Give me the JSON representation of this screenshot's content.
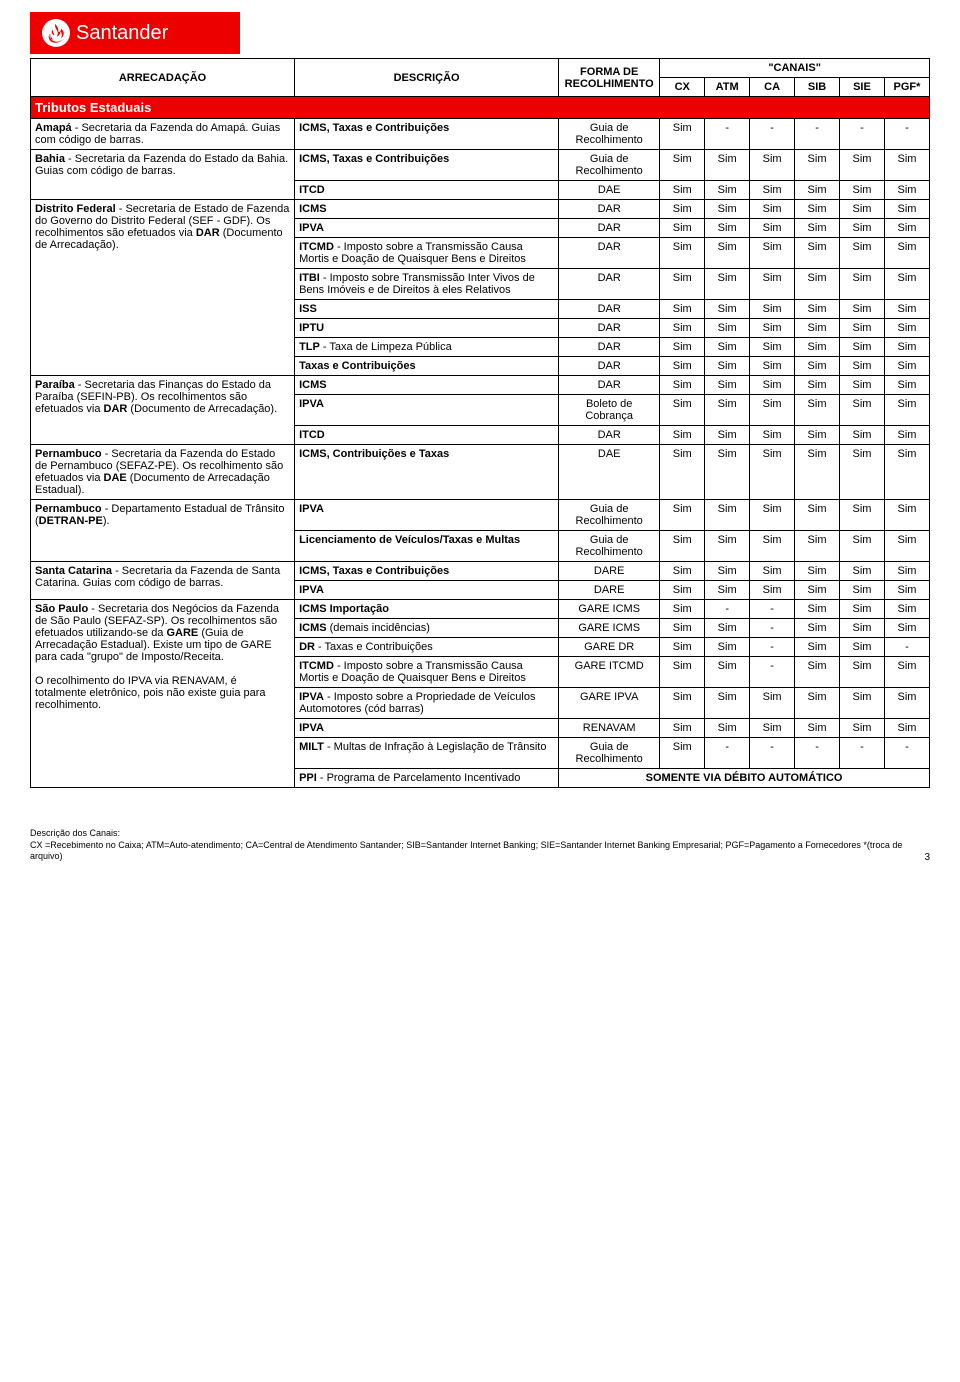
{
  "brand": {
    "name": "Santander",
    "color": "#ec0000"
  },
  "header": {
    "col_arrecadacao": "ARRECADAÇÃO",
    "col_descricao": "DESCRIÇÃO",
    "col_forma": "FORMA DE RECOLHIMENTO",
    "canais_title": "\"CANAIS\"",
    "channels": [
      "CX",
      "ATM",
      "CA",
      "SIB",
      "SIE",
      "PGF*"
    ]
  },
  "section_title": "Tributos Estaduais",
  "groups": [
    {
      "arr_html": "<span class='b'>Amapá</span> - Secretaria da Fazenda do Amapá. Guias com código de barras.",
      "rows": [
        {
          "desc": "<span class='b'>ICMS, Taxas e Contribuições</span>",
          "forma": "Guia de Recolhimento",
          "vals": [
            "Sim",
            "-",
            "-",
            "-",
            "-",
            "-"
          ]
        }
      ]
    },
    {
      "arr_html": "<span class='b'>Bahia</span> - Secretaria da Fazenda do Estado da Bahia. Guias com código de barras.",
      "rows": [
        {
          "desc": "<span class='b'>ICMS, Taxas e Contribuições</span>",
          "forma": "Guia de Recolhimento",
          "vals": [
            "Sim",
            "Sim",
            "Sim",
            "Sim",
            "Sim",
            "Sim"
          ]
        },
        {
          "desc": "<span class='b'>ITCD</span>",
          "forma": "DAE",
          "vals": [
            "Sim",
            "Sim",
            "Sim",
            "Sim",
            "Sim",
            "Sim"
          ]
        }
      ]
    },
    {
      "arr_html": "<span class='b'>Distrito Federal</span> - Secretaria de Estado de Fazenda do Governo do Distrito Federal (SEF - GDF). Os recolhimentos são efetuados via <span class='b'>DAR</span> (Documento de Arrecadação).",
      "rows": [
        {
          "desc": "<span class='b'>ICMS</span>",
          "forma": "DAR",
          "vals": [
            "Sim",
            "Sim",
            "Sim",
            "Sim",
            "Sim",
            "Sim"
          ]
        },
        {
          "desc": "<span class='b'>IPVA</span>",
          "forma": "DAR",
          "vals": [
            "Sim",
            "Sim",
            "Sim",
            "Sim",
            "Sim",
            "Sim"
          ]
        },
        {
          "desc": "<span class='b'>ITCMD</span> - Imposto sobre a Transmissão Causa Mortis e Doação de Quaisquer Bens e Direitos",
          "forma": "DAR",
          "vals": [
            "Sim",
            "Sim",
            "Sim",
            "Sim",
            "Sim",
            "Sim"
          ]
        },
        {
          "desc": "<span class='b'>ITBI</span> - Imposto sobre Transmissão Inter Vivos de Bens Imóveis e de Direitos à eles Relativos",
          "forma": "DAR",
          "vals": [
            "Sim",
            "Sim",
            "Sim",
            "Sim",
            "Sim",
            "Sim"
          ]
        },
        {
          "desc": "<span class='b'>ISS</span>",
          "forma": "DAR",
          "vals": [
            "Sim",
            "Sim",
            "Sim",
            "Sim",
            "Sim",
            "Sim"
          ]
        },
        {
          "desc": "<span class='b'>IPTU</span>",
          "forma": "DAR",
          "vals": [
            "Sim",
            "Sim",
            "Sim",
            "Sim",
            "Sim",
            "Sim"
          ]
        },
        {
          "desc": "<span class='b'>TLP</span> - Taxa de Limpeza Pública",
          "forma": "DAR",
          "vals": [
            "Sim",
            "Sim",
            "Sim",
            "Sim",
            "Sim",
            "Sim"
          ]
        },
        {
          "desc": "<span class='b'>Taxas e Contribuições</span>",
          "forma": "DAR",
          "vals": [
            "Sim",
            "Sim",
            "Sim",
            "Sim",
            "Sim",
            "Sim"
          ]
        }
      ]
    },
    {
      "arr_html": "<span class='b'>Paraíba</span> - Secretaria das Finanças do Estado da Paraíba (SEFIN-PB). Os recolhimentos são efetuados via <span class='b'>DAR</span> (Documento de Arrecadação).",
      "rows": [
        {
          "desc": "<span class='b'>ICMS</span>",
          "forma": "DAR",
          "vals": [
            "Sim",
            "Sim",
            "Sim",
            "Sim",
            "Sim",
            "Sim"
          ]
        },
        {
          "desc": "<span class='b'>IPVA</span>",
          "forma": "Boleto de Cobrança",
          "vals": [
            "Sim",
            "Sim",
            "Sim",
            "Sim",
            "Sim",
            "Sim"
          ]
        },
        {
          "desc": "<span class='b'>ITCD</span>",
          "forma": "DAR",
          "vals": [
            "Sim",
            "Sim",
            "Sim",
            "Sim",
            "Sim",
            "Sim"
          ]
        }
      ]
    },
    {
      "arr_html": "<span class='b'>Pernambuco</span> - Secretaria da Fazenda do Estado de Pernambuco (SEFAZ-PE). Os recolhimento são efetuados via <span class='b'>DAE</span> (Documento de Arrecadação Estadual).",
      "rows": [
        {
          "desc": "<span class='b'>ICMS, Contribuições e Taxas</span>",
          "forma": "DAE",
          "vals": [
            "Sim",
            "Sim",
            "Sim",
            "Sim",
            "Sim",
            "Sim"
          ]
        }
      ]
    },
    {
      "arr_html": "<span class='b'>Pernambuco</span> - Departamento Estadual de Trânsito (<span class='b'>DETRAN-PE</span>).",
      "rows": [
        {
          "desc": "<span class='b'>IPVA</span>",
          "forma": "Guia de Recolhimento",
          "vals": [
            "Sim",
            "Sim",
            "Sim",
            "Sim",
            "Sim",
            "Sim"
          ]
        },
        {
          "desc": "<span class='b'>Licenciamento de Veículos/Taxas e Multas</span>",
          "forma": "Guia de Recolhimento",
          "vals": [
            "Sim",
            "Sim",
            "Sim",
            "Sim",
            "Sim",
            "Sim"
          ]
        }
      ]
    },
    {
      "arr_html": "<span class='b'>Santa Catarina</span> - Secretaria da Fazenda de Santa Catarina. Guias com código de barras.",
      "rows": [
        {
          "desc": "<span class='b'>ICMS, Taxas e Contribuições</span>",
          "forma": "DARE",
          "vals": [
            "Sim",
            "Sim",
            "Sim",
            "Sim",
            "Sim",
            "Sim"
          ]
        },
        {
          "desc": "<span class='b'>IPVA</span>",
          "forma": "DARE",
          "vals": [
            "Sim",
            "Sim",
            "Sim",
            "Sim",
            "Sim",
            "Sim"
          ]
        }
      ]
    },
    {
      "arr_html": "<span class='b'>São Paulo</span> - Secretaria dos Negócios da Fazenda de São Paulo (SEFAZ-SP). Os recolhimentos são efetuados utilizando-se da <span class='b'>GARE</span> (Guia de Arrecadação Estadual). Existe um tipo de GARE para cada \"grupo\" de Imposto/Receita.<br><br>O recolhimento do IPVA via RENAVAM, é totalmente eletrônico, pois não existe guia para recolhimento.",
      "rows": [
        {
          "desc": "<span class='b'>ICMS Importação</span>",
          "forma": "GARE ICMS",
          "vals": [
            "Sim",
            "-",
            "-",
            "Sim",
            "Sim",
            "Sim"
          ]
        },
        {
          "desc": "<span class='b'>ICMS</span> (demais incidências)",
          "forma": "GARE ICMS",
          "vals": [
            "Sim",
            "Sim",
            "-",
            "Sim",
            "Sim",
            "Sim"
          ]
        },
        {
          "desc": "<span class='b'>DR</span> - Taxas e Contribuições",
          "forma": "GARE DR",
          "vals": [
            "Sim",
            "Sim",
            "-",
            "Sim",
            "Sim",
            "-"
          ]
        },
        {
          "desc": "<span class='b'>ITCMD</span> -  Imposto sobre a Transmissão Causa Mortis e Doação de Quaisquer Bens e Direitos",
          "forma": "GARE ITCMD",
          "vals": [
            "Sim",
            "Sim",
            "-",
            "Sim",
            "Sim",
            "Sim"
          ]
        },
        {
          "desc": "<span class='b'>IPVA</span> - Imposto sobre a Propriedade de Veículos Automotores (cód barras)",
          "forma": "GARE IPVA",
          "vals": [
            "Sim",
            "Sim",
            "Sim",
            "Sim",
            "Sim",
            "Sim"
          ]
        },
        {
          "desc": "<span class='b'>IPVA</span>",
          "forma": "RENAVAM",
          "vals": [
            "Sim",
            "Sim",
            "Sim",
            "Sim",
            "Sim",
            "Sim"
          ]
        },
        {
          "desc": "<span class='b'>MILT</span> - Multas de Infração à Legislação de Trânsito",
          "forma": "Guia de Recolhimento",
          "vals": [
            "Sim",
            "-",
            "-",
            "-",
            "-",
            "-"
          ]
        },
        {
          "desc": "<span class='b'>PPI</span> - Programa de Parcelamento Incentivado",
          "special": "SOMENTE VIA DÉBITO AUTOMÁTICO"
        }
      ]
    }
  ],
  "footer": {
    "title": "Descrição dos Canais:",
    "text": "CX =Recebimento no Caixa;  ATM=Auto-atendimento; CA=Central de Atendimento Santander; SIB=Santander Internet Banking; SIE=Santander Internet Banking Empresarial; PGF=Pagamento a Fornecedores *(troca de arquivo)",
    "page": "3"
  }
}
